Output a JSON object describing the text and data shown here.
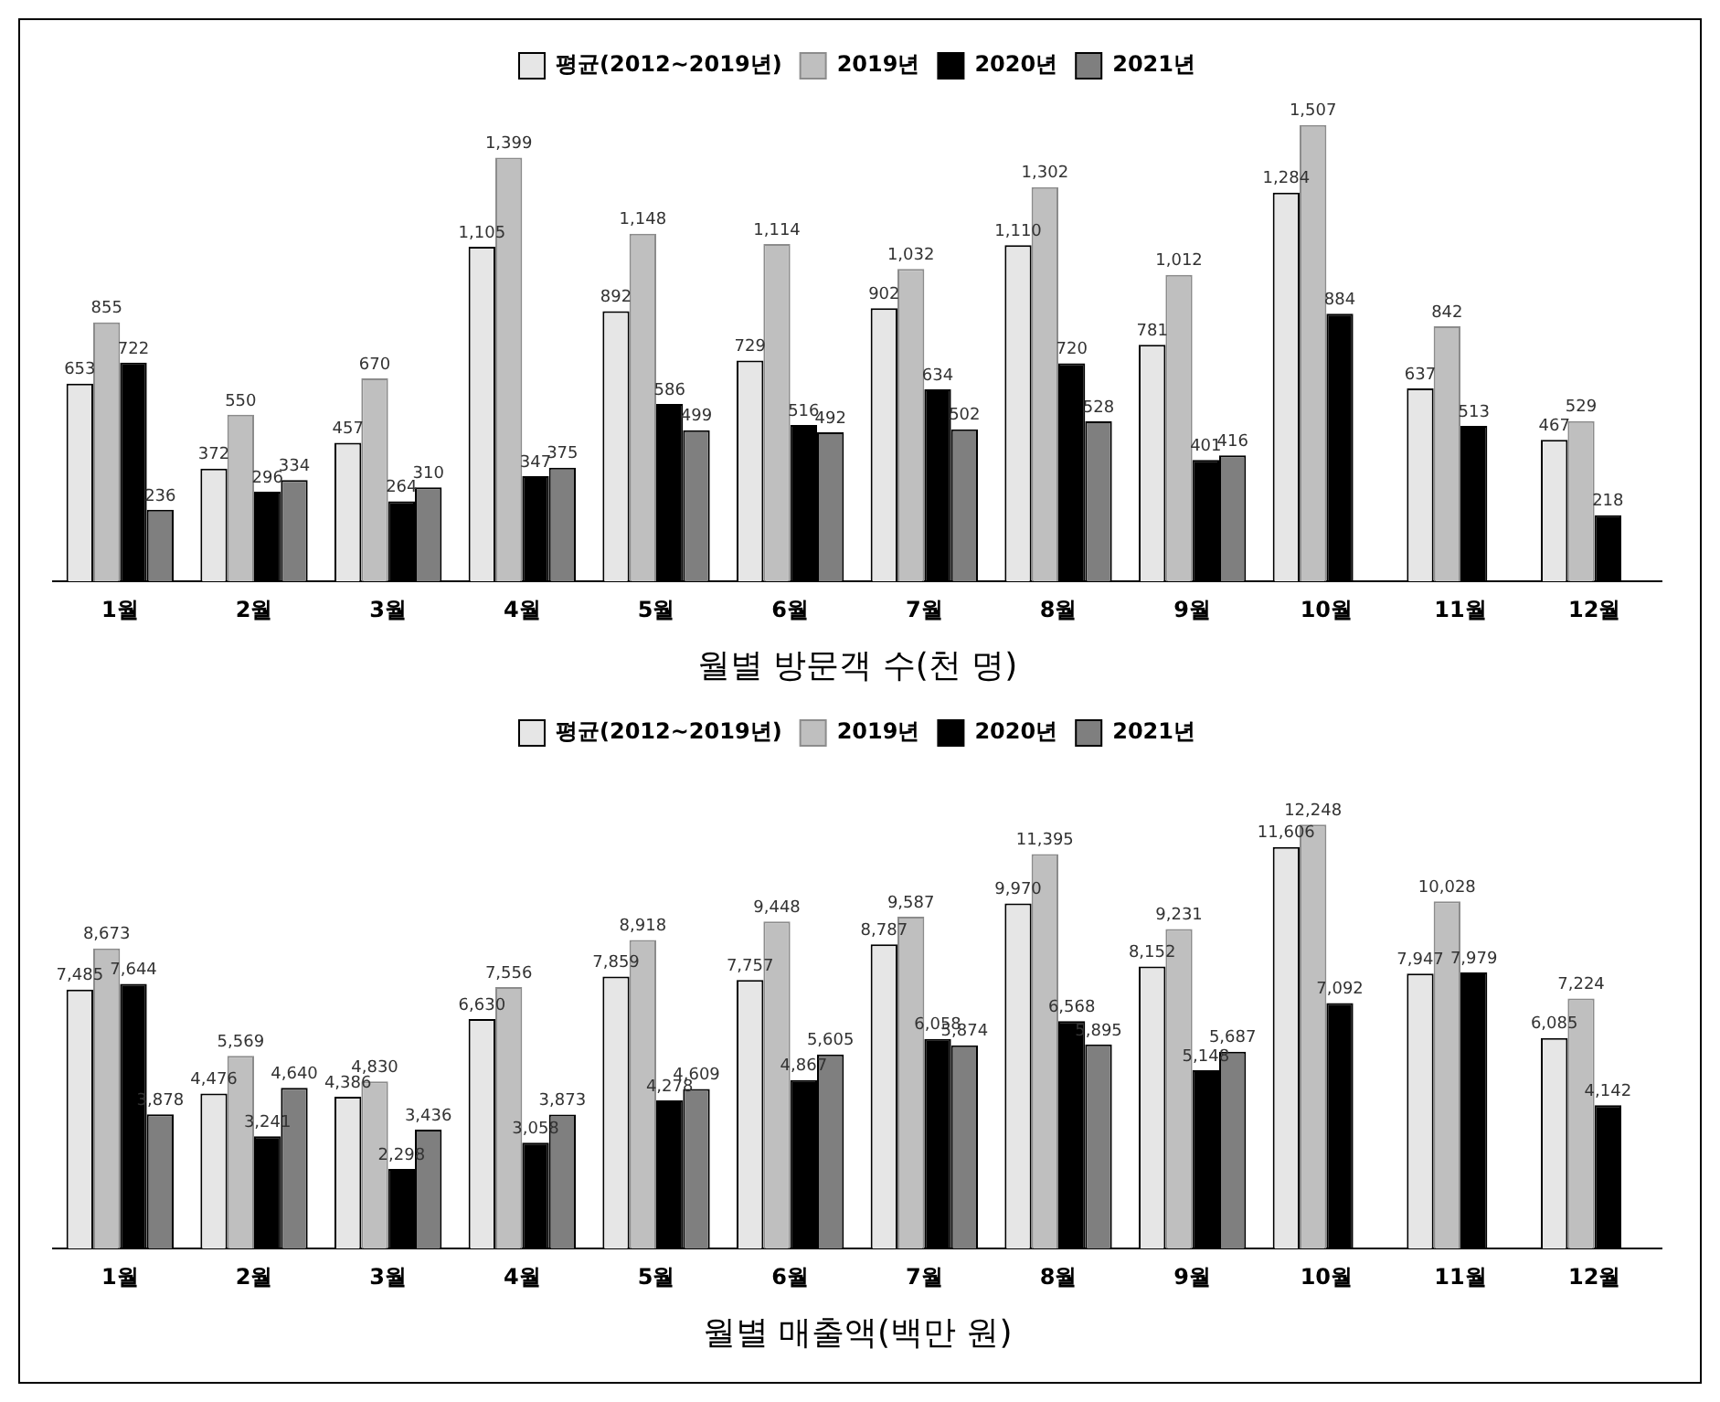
{
  "chart_data": [
    {
      "type": "bar",
      "xlabel": "월별 방문객 수(천 명)",
      "legend": "top",
      "grid": false,
      "categories": [
        "1월",
        "2월",
        "3월",
        "4월",
        "5월",
        "6월",
        "7월",
        "8월",
        "9월",
        "10월",
        "11월",
        "12월"
      ],
      "series": [
        {
          "name": "평균(2012~2019년)",
          "color": "#e6e6e6",
          "values": [
            653,
            372,
            457,
            1105,
            892,
            729,
            902,
            1110,
            781,
            1284,
            637,
            467
          ],
          "value_labels": [
            "653",
            "372",
            "457",
            "1,105",
            "892",
            "729",
            "902",
            "1,110",
            "781",
            "1,284",
            "637",
            "467"
          ]
        },
        {
          "name": "2019년",
          "color": "#bfbfbf",
          "values": [
            855,
            550,
            670,
            1399,
            1148,
            1114,
            1032,
            1302,
            1012,
            1507,
            842,
            529
          ],
          "value_labels": [
            "855",
            "550",
            "670",
            "1,399",
            "1,148",
            "1,114",
            "1,032",
            "1,302",
            "1,012",
            "1,507",
            "842",
            "529"
          ]
        },
        {
          "name": "2020년",
          "color": "#000000",
          "values": [
            722,
            296,
            264,
            347,
            586,
            516,
            634,
            720,
            401,
            884,
            513,
            218
          ],
          "value_labels": [
            "722",
            "296",
            "264",
            "347",
            "586",
            "516",
            "634",
            "720",
            "401",
            "884",
            "513",
            "218"
          ]
        },
        {
          "name": "2021년",
          "color": "#7f7f7f",
          "values": [
            236,
            334,
            310,
            375,
            499,
            492,
            502,
            528,
            416,
            null,
            null,
            null
          ],
          "value_labels": [
            "236",
            "334",
            "310",
            "375",
            "499",
            "492",
            "502",
            "528",
            "416",
            null,
            null,
            null
          ]
        }
      ]
    },
    {
      "type": "bar",
      "xlabel": "월별 매출액(백만 원)",
      "legend": "top",
      "grid": false,
      "categories": [
        "1월",
        "2월",
        "3월",
        "4월",
        "5월",
        "6월",
        "7월",
        "8월",
        "9월",
        "10월",
        "11월",
        "12월"
      ],
      "series": [
        {
          "name": "평균(2012~2019년)",
          "color": "#e6e6e6",
          "values": [
            7485,
            4476,
            4386,
            6630,
            7859,
            7757,
            8787,
            9970,
            8152,
            11606,
            7947,
            6085
          ],
          "value_labels": [
            "7,485",
            "4,476",
            "4,386",
            "6,630",
            "7,859",
            "7,757",
            "8,787",
            "9,970",
            "8,152",
            "11,606",
            "7,947",
            "6,085"
          ]
        },
        {
          "name": "2019년",
          "color": "#bfbfbf",
          "values": [
            8673,
            5569,
            4830,
            7556,
            8918,
            9448,
            9587,
            11395,
            9231,
            12248,
            10028,
            7224
          ],
          "value_labels": [
            "8,673",
            "5,569",
            "4,830",
            "7,556",
            "8,918",
            "9,448",
            "9,587",
            "11,395",
            "9,231",
            "12,248",
            "10,028",
            "7,224"
          ]
        },
        {
          "name": "2020년",
          "color": "#000000",
          "values": [
            7644,
            3241,
            2298,
            3058,
            4278,
            4867,
            6058,
            6568,
            5148,
            7092,
            7979,
            4142
          ],
          "value_labels": [
            "7,644",
            "3,241",
            "2,298",
            "3,058",
            "4,278",
            "4,867",
            "6,058",
            "6,568",
            "5,148",
            "7,092",
            "7,979",
            "4,142"
          ]
        },
        {
          "name": "2021년",
          "color": "#7f7f7f",
          "values": [
            3878,
            4640,
            3436,
            3873,
            4609,
            5605,
            5874,
            5895,
            5687,
            null,
            null,
            null
          ],
          "value_labels": [
            "3,878",
            "4,640",
            "3,436",
            "3,873",
            "4,609",
            "5,605",
            "5,874",
            "5,895",
            "5,687",
            null,
            null,
            null
          ]
        }
      ]
    }
  ]
}
